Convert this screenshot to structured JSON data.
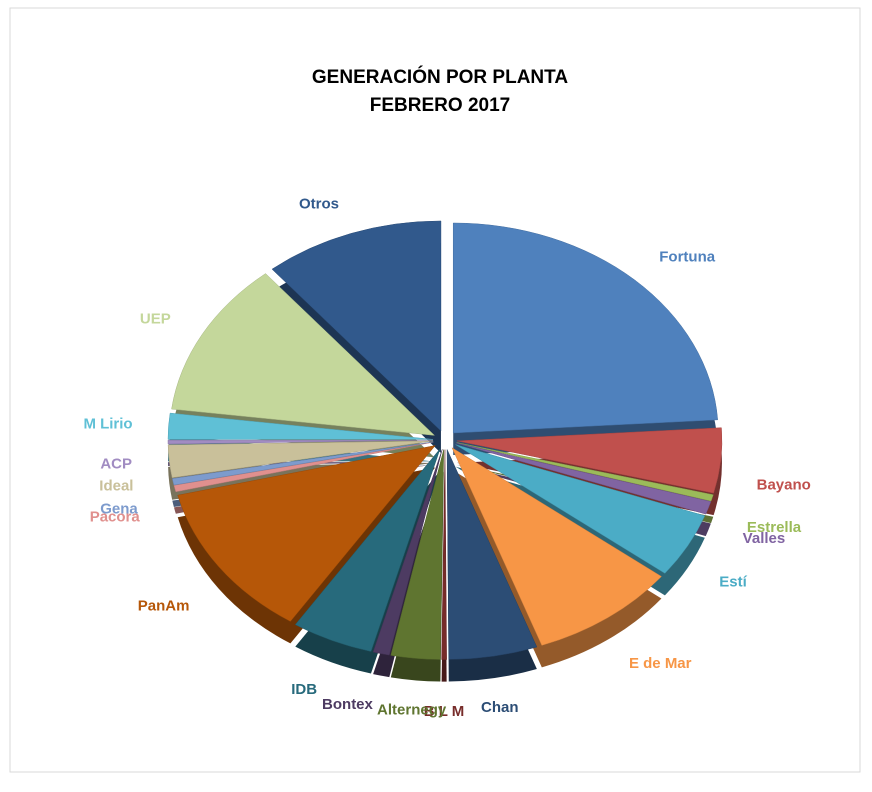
{
  "chart_data": {
    "type": "pie",
    "title": "GENERACIÓN POR PLANTA",
    "subtitle": "FEBRERO 2017",
    "categories": [
      "Fortuna",
      "Bayano",
      "Estrella",
      "Valles",
      "Estí",
      "E de Mar",
      "Chan",
      "B L M",
      "Alternegy",
      "Bontex",
      "IDB",
      "PanAm",
      "Pacora",
      "Gena",
      "Ideal",
      "ACP",
      "M Lirio",
      "UEP",
      "Otros"
    ],
    "values": [
      24,
      5,
      0.5,
      1,
      5,
      9,
      5.4,
      0.3,
      3,
      1,
      5,
      12,
      0.5,
      0.5,
      2.5,
      0.3,
      2,
      12,
      11
    ],
    "colors": [
      "#4f81bd",
      "#c0504d",
      "#9bbb59",
      "#8064a2",
      "#4bacc6",
      "#f79646",
      "#2c4d75",
      "#772c2a",
      "#5f7530",
      "#4d3b62",
      "#276a7c",
      "#b65708",
      "#e0908e",
      "#7d9bcd",
      "#c9c09a",
      "#a18cc2",
      "#5fc0d6",
      "#c4d79b",
      "#31598c"
    ]
  }
}
